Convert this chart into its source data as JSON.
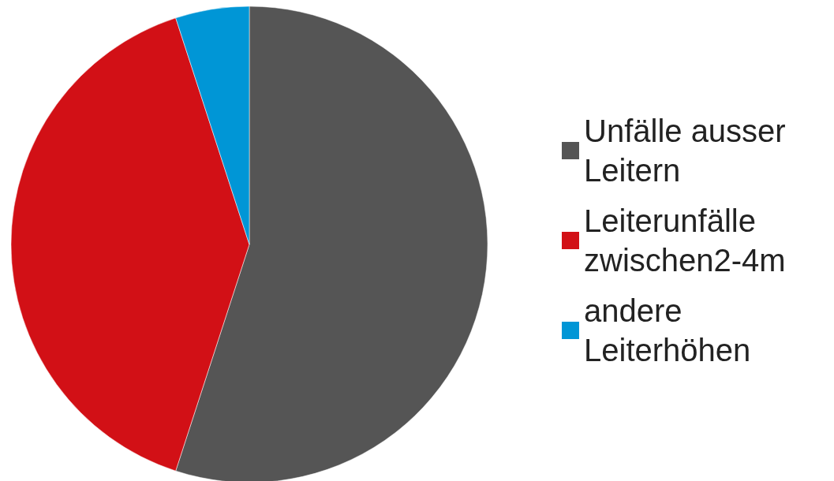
{
  "chart_data": {
    "type": "pie",
    "categories": [
      "Unfälle ausser Leitern",
      "Leiterunfälle zwischen2-4m",
      "andere Leiterhöhen"
    ],
    "values": [
      55,
      40,
      5
    ],
    "colors": [
      "#555555",
      "#d21016",
      "#0096d6"
    ],
    "legend": "right"
  }
}
